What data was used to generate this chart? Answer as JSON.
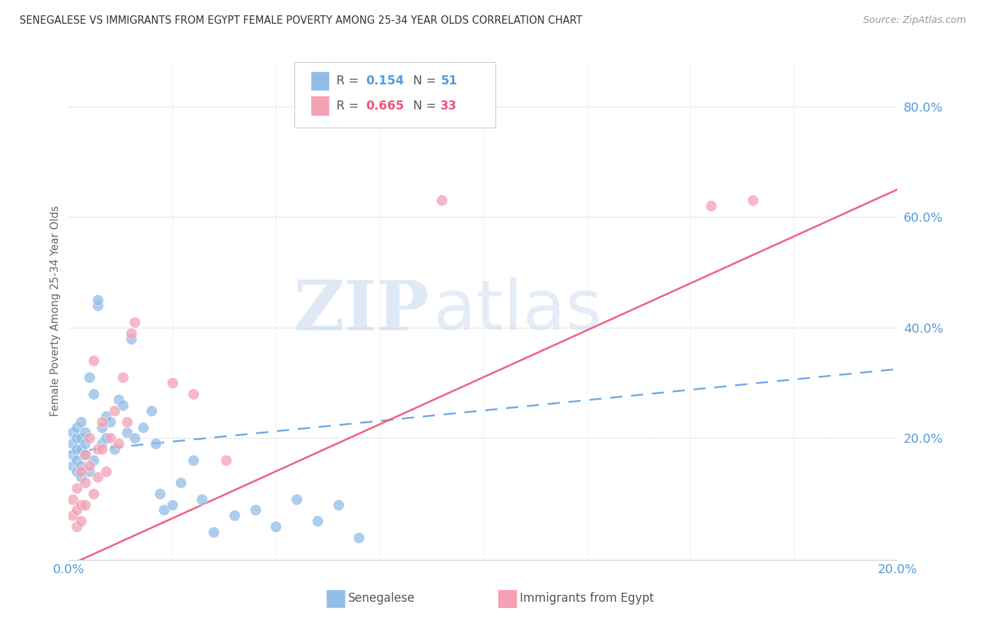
{
  "title": "SENEGALESE VS IMMIGRANTS FROM EGYPT FEMALE POVERTY AMONG 25-34 YEAR OLDS CORRELATION CHART",
  "source": "Source: ZipAtlas.com",
  "ylabel": "Female Poverty Among 25-34 Year Olds",
  "yticklabels": [
    "20.0%",
    "40.0%",
    "60.0%",
    "80.0%"
  ],
  "ytickvals": [
    0.2,
    0.4,
    0.6,
    0.8
  ],
  "xlim": [
    0.0,
    0.2
  ],
  "ylim": [
    -0.02,
    0.88
  ],
  "blue_color": "#92BDE8",
  "pink_color": "#F4A0B5",
  "blue_line_color": "#5599DD",
  "pink_line_color": "#EE5577",
  "watermark_zip": "ZIP",
  "watermark_atlas": "atlas",
  "background_color": "#FFFFFF",
  "grid_color": "#DDDDDD",
  "tick_label_color": "#5599DD",
  "senegalese_x": [
    0.001,
    0.001,
    0.001,
    0.001,
    0.002,
    0.002,
    0.002,
    0.002,
    0.002,
    0.003,
    0.003,
    0.003,
    0.003,
    0.003,
    0.004,
    0.004,
    0.004,
    0.005,
    0.005,
    0.006,
    0.006,
    0.007,
    0.007,
    0.008,
    0.008,
    0.009,
    0.009,
    0.01,
    0.011,
    0.012,
    0.013,
    0.014,
    0.015,
    0.016,
    0.018,
    0.02,
    0.021,
    0.022,
    0.023,
    0.025,
    0.027,
    0.03,
    0.032,
    0.035,
    0.04,
    0.045,
    0.05,
    0.055,
    0.06,
    0.065,
    0.07
  ],
  "senegalese_y": [
    0.19,
    0.21,
    0.17,
    0.15,
    0.2,
    0.22,
    0.18,
    0.16,
    0.14,
    0.2,
    0.18,
    0.23,
    0.15,
    0.13,
    0.19,
    0.21,
    0.17,
    0.31,
    0.14,
    0.28,
    0.16,
    0.44,
    0.45,
    0.19,
    0.22,
    0.2,
    0.24,
    0.23,
    0.18,
    0.27,
    0.26,
    0.21,
    0.38,
    0.2,
    0.22,
    0.25,
    0.19,
    0.1,
    0.07,
    0.08,
    0.12,
    0.16,
    0.09,
    0.03,
    0.06,
    0.07,
    0.04,
    0.09,
    0.05,
    0.08,
    0.02
  ],
  "egypt_x": [
    0.001,
    0.001,
    0.002,
    0.002,
    0.002,
    0.003,
    0.003,
    0.003,
    0.004,
    0.004,
    0.004,
    0.005,
    0.005,
    0.006,
    0.006,
    0.007,
    0.007,
    0.008,
    0.008,
    0.009,
    0.01,
    0.011,
    0.012,
    0.013,
    0.014,
    0.015,
    0.016,
    0.025,
    0.03,
    0.038,
    0.09,
    0.155,
    0.165
  ],
  "egypt_y": [
    0.09,
    0.06,
    0.11,
    0.07,
    0.04,
    0.14,
    0.08,
    0.05,
    0.17,
    0.12,
    0.08,
    0.2,
    0.15,
    0.34,
    0.1,
    0.18,
    0.13,
    0.23,
    0.18,
    0.14,
    0.2,
    0.25,
    0.19,
    0.31,
    0.23,
    0.39,
    0.41,
    0.3,
    0.28,
    0.16,
    0.63,
    0.62,
    0.63
  ],
  "blue_trend_x": [
    0.0,
    0.2
  ],
  "blue_trend_y": [
    0.175,
    0.325
  ],
  "pink_trend_x": [
    0.0,
    0.2
  ],
  "pink_trend_y": [
    -0.03,
    0.65
  ]
}
